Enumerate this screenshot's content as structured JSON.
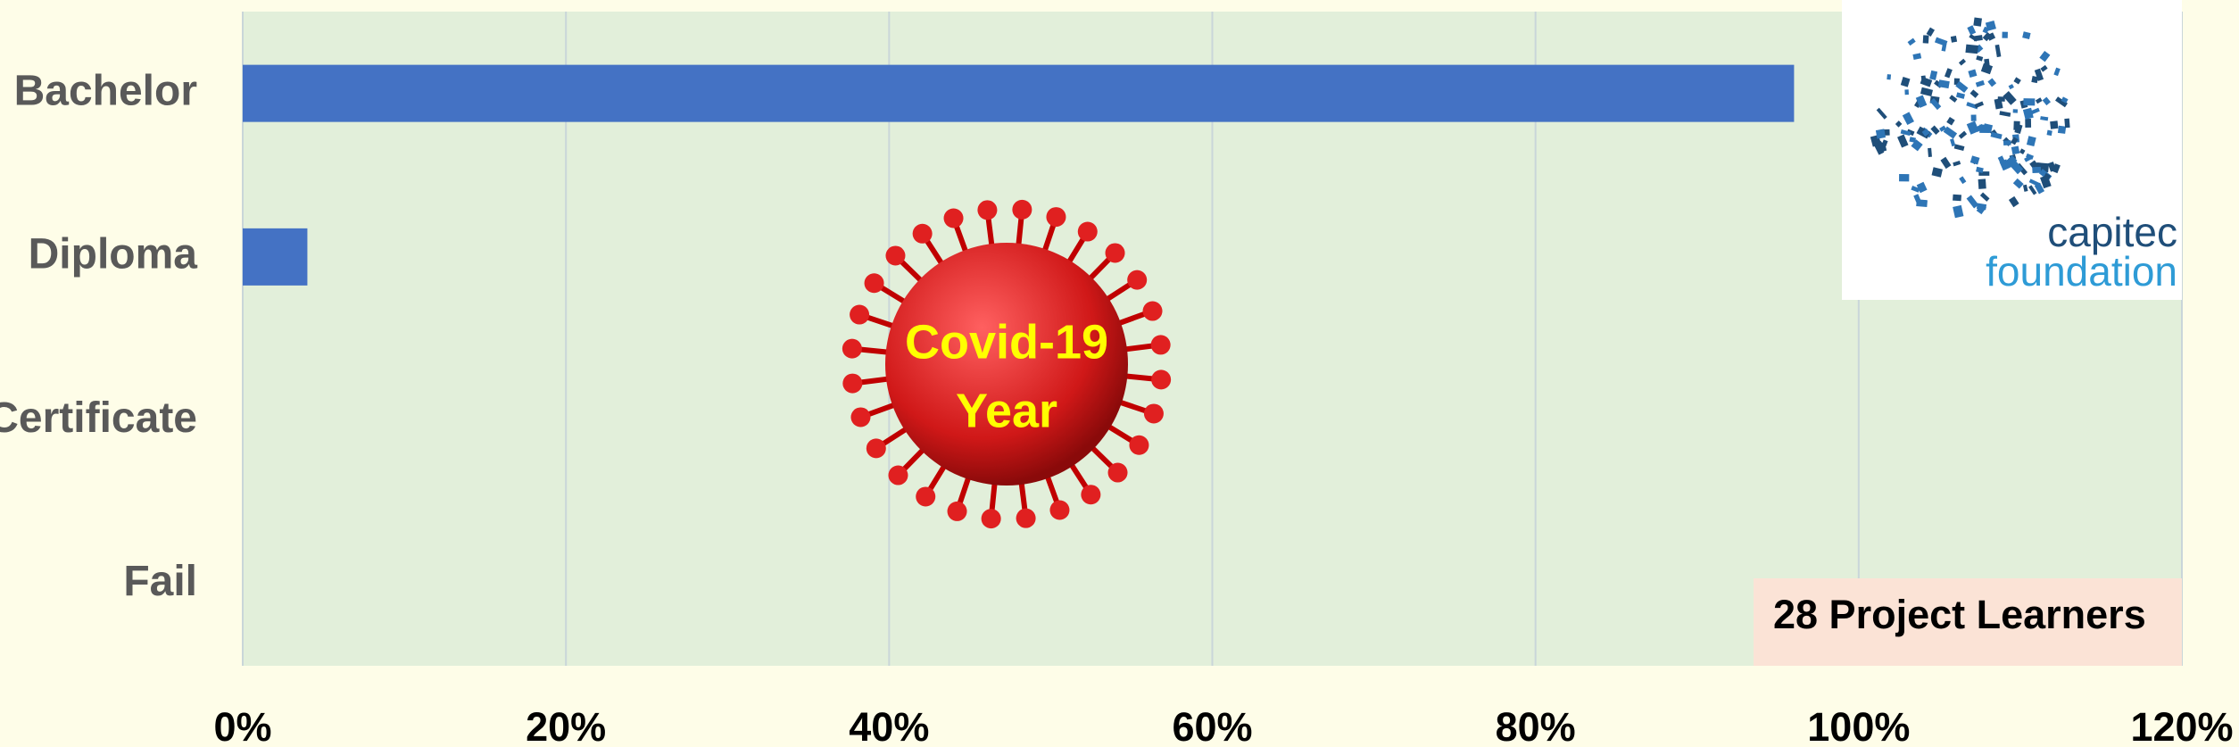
{
  "chart_data": {
    "type": "bar",
    "orientation": "horizontal",
    "categories": [
      "Bachelor",
      "Diploma",
      "Certificate",
      "Fail"
    ],
    "values": [
      96,
      4,
      0,
      0
    ],
    "color": "#4472c4",
    "xlim": [
      0,
      120
    ],
    "xticks": [
      {
        "value": 0,
        "label": "0%"
      },
      {
        "value": 20,
        "label": "20%"
      },
      {
        "value": 40,
        "label": "40%"
      },
      {
        "value": 60,
        "label": "60%"
      },
      {
        "value": 80,
        "label": "80%"
      },
      {
        "value": 100,
        "label": "100%"
      },
      {
        "value": 120,
        "label": "120%"
      }
    ],
    "grid": true,
    "annotations": [
      "Covid-19",
      "Year",
      "28 Project Learners"
    ],
    "logo": [
      "capitec",
      "foundation"
    ]
  }
}
